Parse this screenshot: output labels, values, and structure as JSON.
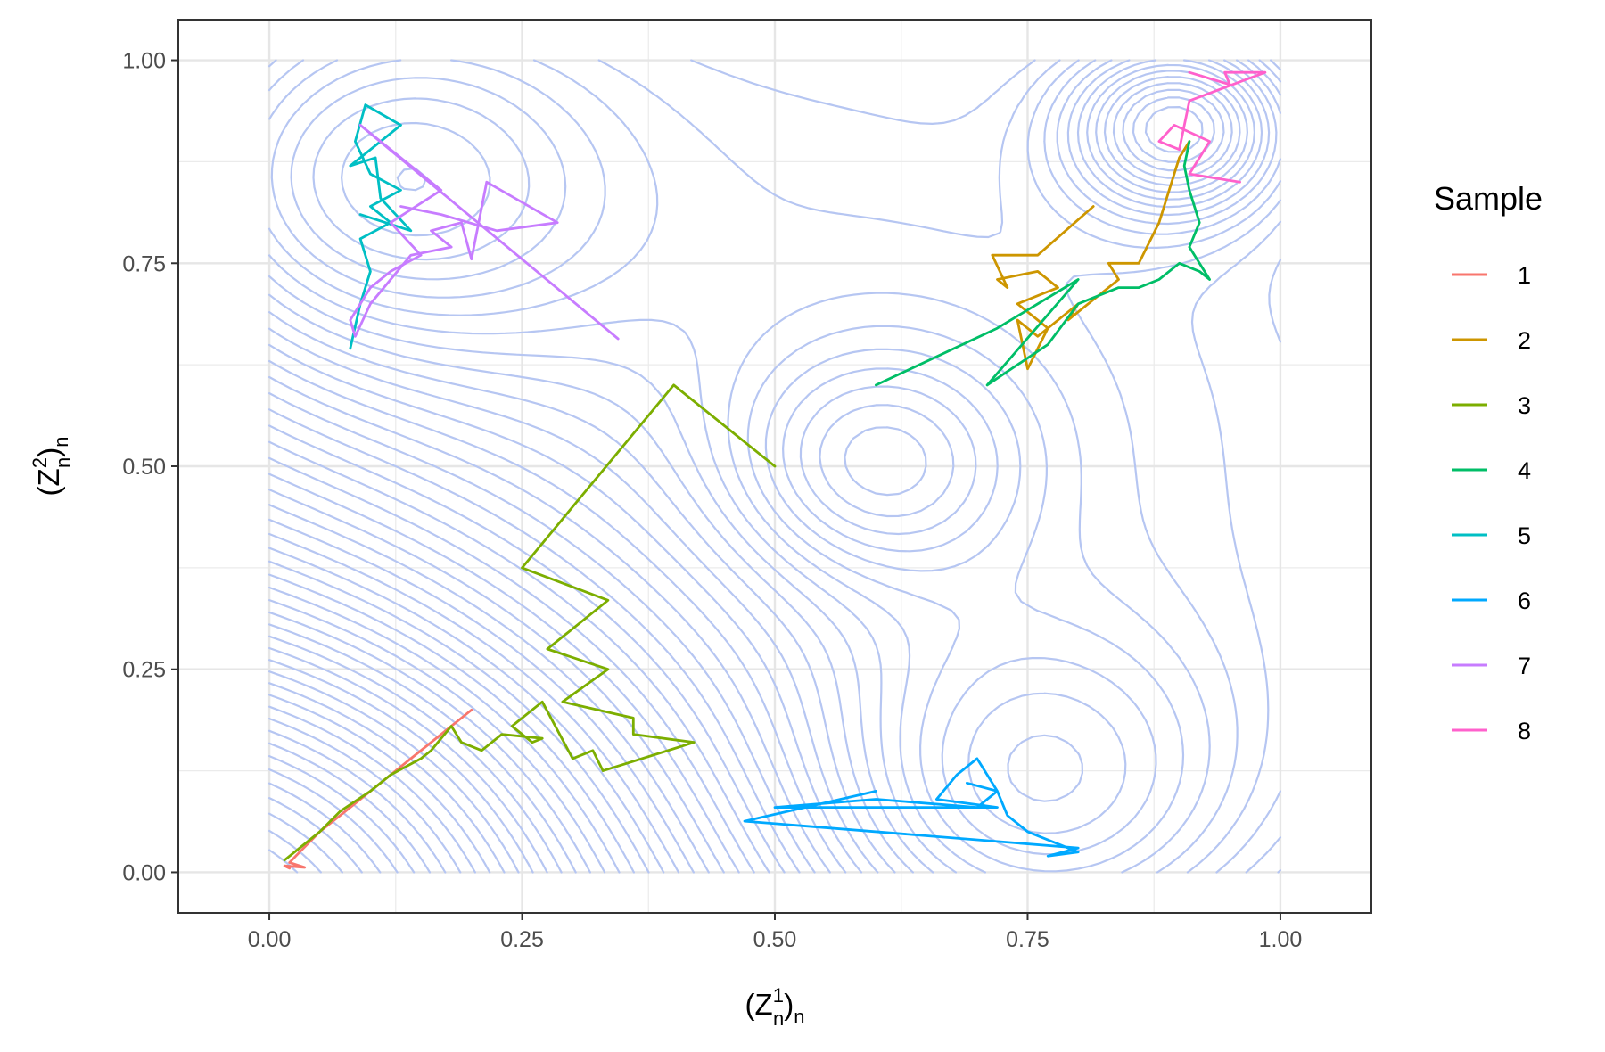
{
  "chart_data": {
    "type": "line",
    "xlabel": {
      "base": "(Z",
      "sup": "1",
      "sub": "n",
      "close": ")",
      "sub2": "n"
    },
    "ylabel": {
      "base": "(Z",
      "sup": "2",
      "sub": "n",
      "close": ")",
      "sub2": "n"
    },
    "xlim": [
      -0.09,
      1.09
    ],
    "ylim": [
      -0.05,
      1.05
    ],
    "x_ticks": [
      0.0,
      0.25,
      0.5,
      0.75,
      1.0
    ],
    "y_ticks": [
      0.0,
      0.25,
      0.5,
      0.75,
      1.0
    ],
    "x_tick_labels": [
      "0.00",
      "0.25",
      "0.50",
      "0.75",
      "1.00"
    ],
    "y_tick_labels": [
      "0.00",
      "0.25",
      "0.50",
      "0.75",
      "1.00"
    ],
    "grid": true,
    "legend": {
      "title": "Sample",
      "position": "right"
    },
    "contour": {
      "color": "#b6c6f2",
      "description_domain": [
        0,
        1
      ]
    },
    "series": [
      {
        "name": "1",
        "color": "#F8766D",
        "points": [
          [
            0.2,
            0.2
          ],
          [
            0.17,
            0.17
          ],
          [
            0.14,
            0.14
          ],
          [
            0.11,
            0.11
          ],
          [
            0.08,
            0.08
          ],
          [
            0.05,
            0.05
          ],
          [
            0.03,
            0.025
          ],
          [
            0.02,
            0.012
          ],
          [
            0.035,
            0.006
          ],
          [
            0.015,
            0.008
          ],
          [
            0.02,
            0.005
          ]
        ]
      },
      {
        "name": "2",
        "color": "#CD9600",
        "points": [
          [
            0.815,
            0.82
          ],
          [
            0.76,
            0.76
          ],
          [
            0.715,
            0.76
          ],
          [
            0.73,
            0.72
          ],
          [
            0.72,
            0.73
          ],
          [
            0.76,
            0.74
          ],
          [
            0.78,
            0.72
          ],
          [
            0.74,
            0.7
          ],
          [
            0.77,
            0.67
          ],
          [
            0.75,
            0.62
          ],
          [
            0.74,
            0.68
          ],
          [
            0.76,
            0.66
          ],
          [
            0.8,
            0.7
          ],
          [
            0.79,
            0.68
          ],
          [
            0.82,
            0.71
          ],
          [
            0.84,
            0.73
          ],
          [
            0.83,
            0.75
          ],
          [
            0.86,
            0.75
          ],
          [
            0.88,
            0.8
          ],
          [
            0.89,
            0.84
          ],
          [
            0.9,
            0.88
          ],
          [
            0.91,
            0.9
          ]
        ]
      },
      {
        "name": "3",
        "color": "#7CAE00",
        "points": [
          [
            0.5,
            0.5
          ],
          [
            0.4,
            0.6
          ],
          [
            0.25,
            0.375
          ],
          [
            0.335,
            0.335
          ],
          [
            0.275,
            0.275
          ],
          [
            0.335,
            0.25
          ],
          [
            0.29,
            0.21
          ],
          [
            0.36,
            0.19
          ],
          [
            0.36,
            0.17
          ],
          [
            0.42,
            0.16
          ],
          [
            0.33,
            0.125
          ],
          [
            0.32,
            0.15
          ],
          [
            0.3,
            0.14
          ],
          [
            0.27,
            0.21
          ],
          [
            0.24,
            0.18
          ],
          [
            0.26,
            0.16
          ],
          [
            0.27,
            0.165
          ],
          [
            0.23,
            0.17
          ],
          [
            0.21,
            0.15
          ],
          [
            0.19,
            0.16
          ],
          [
            0.18,
            0.18
          ],
          [
            0.16,
            0.15
          ],
          [
            0.15,
            0.14
          ],
          [
            0.12,
            0.12
          ],
          [
            0.1,
            0.1
          ],
          [
            0.07,
            0.075
          ],
          [
            0.05,
            0.05
          ],
          [
            0.03,
            0.03
          ],
          [
            0.015,
            0.015
          ]
        ]
      },
      {
        "name": "4",
        "color": "#00BE67",
        "points": [
          [
            0.6,
            0.6
          ],
          [
            0.72,
            0.67
          ],
          [
            0.8,
            0.73
          ],
          [
            0.71,
            0.6
          ],
          [
            0.77,
            0.65
          ],
          [
            0.8,
            0.7
          ],
          [
            0.84,
            0.72
          ],
          [
            0.86,
            0.72
          ],
          [
            0.88,
            0.73
          ],
          [
            0.9,
            0.75
          ],
          [
            0.92,
            0.74
          ],
          [
            0.93,
            0.73
          ],
          [
            0.91,
            0.77
          ],
          [
            0.92,
            0.8
          ],
          [
            0.91,
            0.84
          ],
          [
            0.905,
            0.87
          ],
          [
            0.91,
            0.9
          ]
        ]
      },
      {
        "name": "5",
        "color": "#00BFC4",
        "points": [
          [
            0.08,
            0.645
          ],
          [
            0.09,
            0.7
          ],
          [
            0.1,
            0.74
          ],
          [
            0.09,
            0.78
          ],
          [
            0.12,
            0.8
          ],
          [
            0.1,
            0.82
          ],
          [
            0.13,
            0.84
          ],
          [
            0.1,
            0.86
          ],
          [
            0.085,
            0.9
          ],
          [
            0.095,
            0.945
          ],
          [
            0.13,
            0.92
          ],
          [
            0.08,
            0.87
          ],
          [
            0.105,
            0.88
          ],
          [
            0.11,
            0.83
          ],
          [
            0.14,
            0.79
          ],
          [
            0.09,
            0.81
          ]
        ]
      },
      {
        "name": "6",
        "color": "#00A9FF",
        "points": [
          [
            0.6,
            0.1
          ],
          [
            0.47,
            0.063
          ],
          [
            0.8,
            0.03
          ],
          [
            0.77,
            0.02
          ],
          [
            0.8,
            0.025
          ],
          [
            0.75,
            0.05
          ],
          [
            0.73,
            0.07
          ],
          [
            0.72,
            0.1
          ],
          [
            0.7,
            0.14
          ],
          [
            0.68,
            0.12
          ],
          [
            0.66,
            0.09
          ],
          [
            0.72,
            0.08
          ],
          [
            0.5,
            0.08
          ],
          [
            0.6,
            0.09
          ],
          [
            0.7,
            0.08
          ],
          [
            0.72,
            0.1
          ],
          [
            0.69,
            0.11
          ]
        ]
      },
      {
        "name": "7",
        "color": "#C77CFF",
        "points": [
          [
            0.345,
            0.657
          ],
          [
            0.09,
            0.92
          ],
          [
            0.17,
            0.84
          ],
          [
            0.12,
            0.8
          ],
          [
            0.15,
            0.76
          ],
          [
            0.12,
            0.74
          ],
          [
            0.1,
            0.72
          ],
          [
            0.08,
            0.68
          ],
          [
            0.085,
            0.66
          ],
          [
            0.1,
            0.7
          ],
          [
            0.14,
            0.76
          ],
          [
            0.18,
            0.77
          ],
          [
            0.16,
            0.79
          ],
          [
            0.19,
            0.8
          ],
          [
            0.2,
            0.755
          ],
          [
            0.215,
            0.85
          ],
          [
            0.285,
            0.8
          ],
          [
            0.225,
            0.79
          ],
          [
            0.17,
            0.81
          ],
          [
            0.13,
            0.82
          ]
        ]
      },
      {
        "name": "8",
        "color": "#FF61CC",
        "points": [
          [
            0.96,
            0.85
          ],
          [
            0.91,
            0.86
          ],
          [
            0.93,
            0.9
          ],
          [
            0.895,
            0.92
          ],
          [
            0.88,
            0.9
          ],
          [
            0.9,
            0.89
          ],
          [
            0.91,
            0.95
          ],
          [
            0.985,
            0.985
          ],
          [
            0.945,
            0.985
          ],
          [
            0.95,
            0.97
          ],
          [
            0.91,
            0.985
          ]
        ]
      }
    ]
  }
}
